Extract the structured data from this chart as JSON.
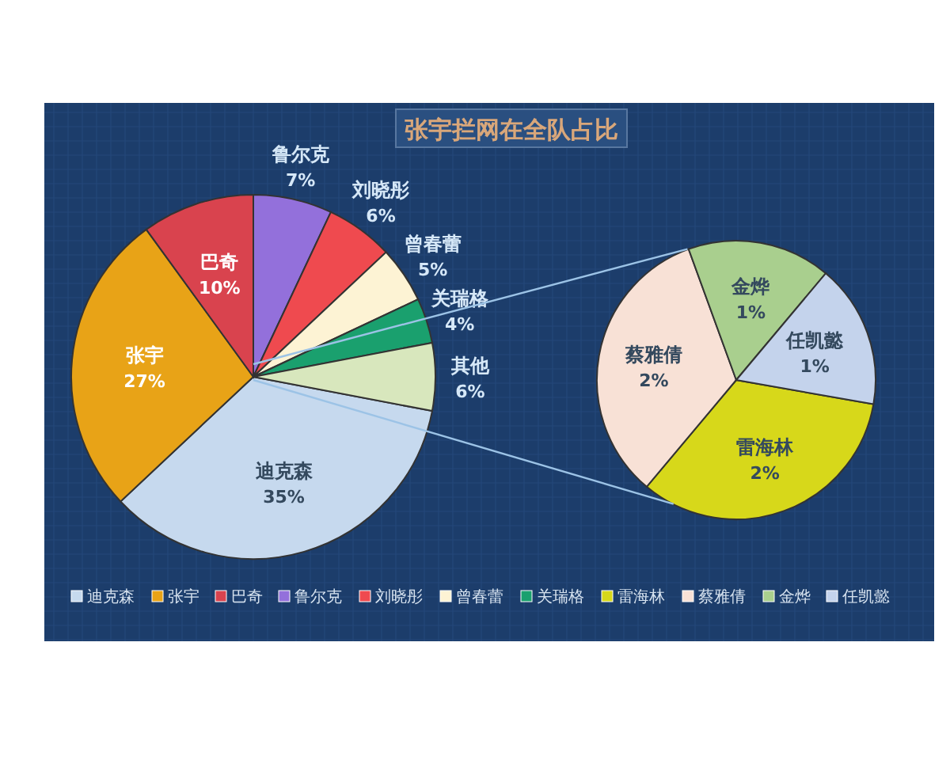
{
  "chart_data": [
    {
      "type": "pie",
      "title": "张宇拦网在全队占比",
      "categories": [
        "迪克森",
        "张宇",
        "巴奇",
        "鲁尔克",
        "刘晓彤",
        "曾春蕾",
        "关瑞格",
        "其他"
      ],
      "values": [
        35,
        27,
        10,
        7,
        6,
        5,
        4,
        6
      ],
      "value_labels": [
        "35%",
        "27%",
        "10%",
        "7%",
        "6%",
        "5%",
        "4%",
        "6%"
      ],
      "colors": [
        "#c6d9ee",
        "#e8a317",
        "#d9434e",
        "#9370db",
        "#ef4a4f",
        "#fdf3d4",
        "#1aa06e",
        "#d8e7bd"
      ],
      "legend": "bottom"
    },
    {
      "type": "pie",
      "categories": [
        "雷海林",
        "蔡雅倩",
        "金烨",
        "任凯懿"
      ],
      "values": [
        2,
        2,
        1,
        1
      ],
      "value_labels": [
        "2%",
        "2%",
        "1%",
        "1%"
      ],
      "colors": [
        "#d7d81a",
        "#f8e1d6",
        "#a9cf8e",
        "#c4d3ec"
      ],
      "legend": "bottom"
    }
  ]
}
